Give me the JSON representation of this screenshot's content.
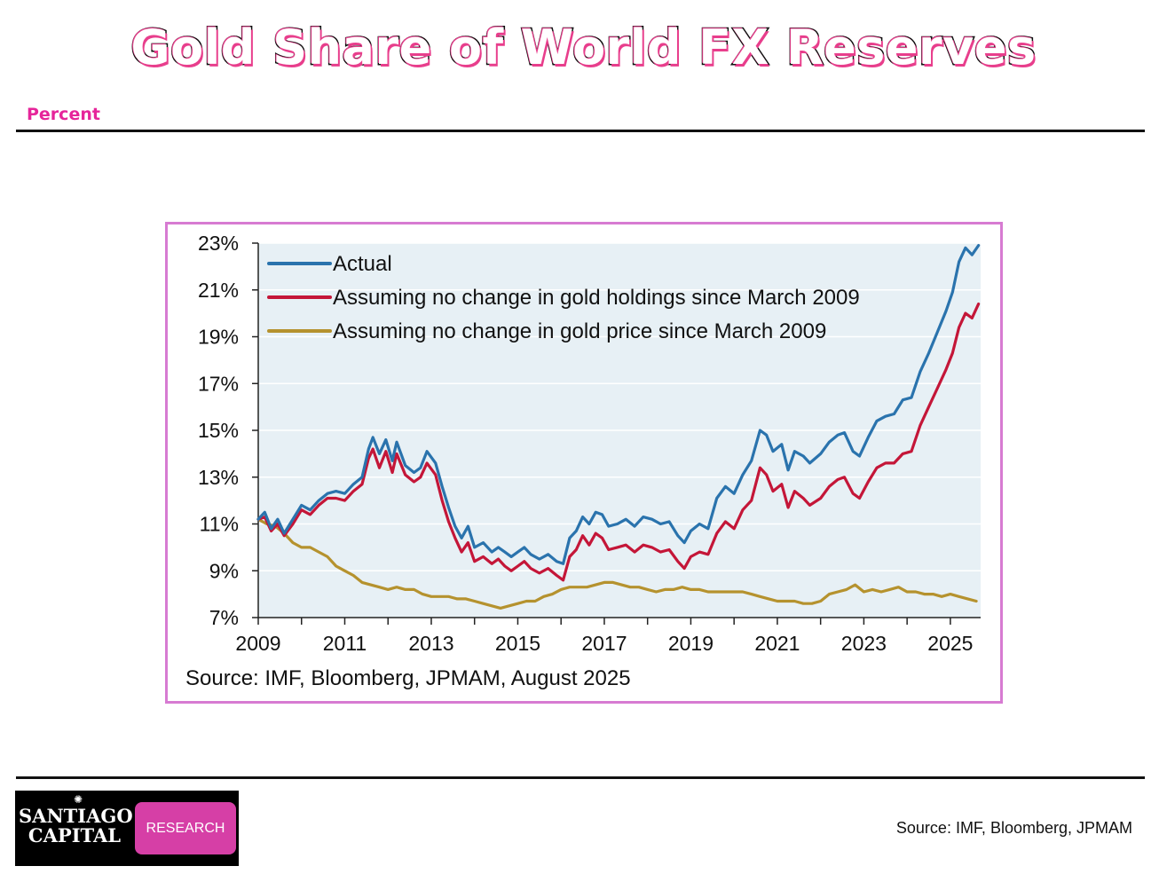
{
  "page": {
    "title": "Gold Share of World FX Reserves",
    "unit_label": "Percent",
    "footer_source": "Source: IMF, Bloomberg, JPMAM"
  },
  "logo": {
    "name_line1": "SANTIAGO",
    "name_line2": "CAPITAL",
    "badge": "RESEARCH"
  },
  "colors": {
    "actual": "#2a73ad",
    "no_change_holdings": "#c41638",
    "no_change_price": "#b5922e",
    "plot_background": "#e7f0f5",
    "frame_border": "#d77bd2",
    "accent_pink": "#e6259a"
  },
  "chart_data": {
    "type": "line",
    "source_note": "Source: IMF, Bloomberg, JPMAM, August 2025",
    "xlim": [
      2009,
      2025.7
    ],
    "ylim": [
      7,
      23
    ],
    "x_ticks": [
      2009,
      2011,
      2013,
      2015,
      2017,
      2019,
      2021,
      2023,
      2025
    ],
    "x_tick_labels": [
      "2009",
      "2011",
      "2013",
      "2015",
      "2017",
      "2019",
      "2021",
      "2023",
      "2025"
    ],
    "y_ticks": [
      7,
      9,
      11,
      13,
      15,
      17,
      19,
      21,
      23
    ],
    "y_tick_labels": [
      "7%",
      "9%",
      "11%",
      "13%",
      "15%",
      "17%",
      "19%",
      "21%",
      "23%"
    ],
    "grid": "horizontal",
    "legend_position": "top-left",
    "series": [
      {
        "name": "Actual",
        "points": [
          [
            2009.0,
            11.2
          ],
          [
            2009.15,
            11.5
          ],
          [
            2009.3,
            10.8
          ],
          [
            2009.45,
            11.2
          ],
          [
            2009.6,
            10.6
          ],
          [
            2009.8,
            11.2
          ],
          [
            2010.0,
            11.8
          ],
          [
            2010.2,
            11.6
          ],
          [
            2010.4,
            12.0
          ],
          [
            2010.6,
            12.3
          ],
          [
            2010.8,
            12.4
          ],
          [
            2011.0,
            12.3
          ],
          [
            2011.2,
            12.7
          ],
          [
            2011.4,
            13.0
          ],
          [
            2011.55,
            14.2
          ],
          [
            2011.65,
            14.7
          ],
          [
            2011.8,
            14.0
          ],
          [
            2011.95,
            14.6
          ],
          [
            2012.1,
            13.7
          ],
          [
            2012.2,
            14.5
          ],
          [
            2012.4,
            13.5
          ],
          [
            2012.6,
            13.2
          ],
          [
            2012.75,
            13.4
          ],
          [
            2012.9,
            14.1
          ],
          [
            2013.1,
            13.6
          ],
          [
            2013.25,
            12.6
          ],
          [
            2013.4,
            11.7
          ],
          [
            2013.55,
            10.9
          ],
          [
            2013.7,
            10.4
          ],
          [
            2013.85,
            10.9
          ],
          [
            2014.0,
            10.0
          ],
          [
            2014.2,
            10.2
          ],
          [
            2014.4,
            9.8
          ],
          [
            2014.55,
            10.0
          ],
          [
            2014.7,
            9.8
          ],
          [
            2014.85,
            9.6
          ],
          [
            2015.0,
            9.8
          ],
          [
            2015.15,
            10.0
          ],
          [
            2015.3,
            9.7
          ],
          [
            2015.5,
            9.5
          ],
          [
            2015.7,
            9.7
          ],
          [
            2015.9,
            9.4
          ],
          [
            2016.05,
            9.3
          ],
          [
            2016.2,
            10.4
          ],
          [
            2016.35,
            10.7
          ],
          [
            2016.5,
            11.3
          ],
          [
            2016.65,
            11.0
          ],
          [
            2016.8,
            11.5
          ],
          [
            2016.95,
            11.4
          ],
          [
            2017.1,
            10.9
          ],
          [
            2017.3,
            11.0
          ],
          [
            2017.5,
            11.2
          ],
          [
            2017.7,
            10.9
          ],
          [
            2017.9,
            11.3
          ],
          [
            2018.1,
            11.2
          ],
          [
            2018.3,
            11.0
          ],
          [
            2018.5,
            11.1
          ],
          [
            2018.7,
            10.5
          ],
          [
            2018.85,
            10.2
          ],
          [
            2019.0,
            10.7
          ],
          [
            2019.2,
            11.0
          ],
          [
            2019.4,
            10.8
          ],
          [
            2019.6,
            12.1
          ],
          [
            2019.8,
            12.6
          ],
          [
            2020.0,
            12.3
          ],
          [
            2020.2,
            13.1
          ],
          [
            2020.4,
            13.7
          ],
          [
            2020.6,
            15.0
          ],
          [
            2020.75,
            14.8
          ],
          [
            2020.9,
            14.1
          ],
          [
            2021.1,
            14.4
          ],
          [
            2021.25,
            13.3
          ],
          [
            2021.4,
            14.1
          ],
          [
            2021.6,
            13.9
          ],
          [
            2021.75,
            13.6
          ],
          [
            2022.0,
            14.0
          ],
          [
            2022.2,
            14.5
          ],
          [
            2022.4,
            14.8
          ],
          [
            2022.55,
            14.9
          ],
          [
            2022.75,
            14.1
          ],
          [
            2022.9,
            13.9
          ],
          [
            2023.1,
            14.7
          ],
          [
            2023.3,
            15.4
          ],
          [
            2023.5,
            15.6
          ],
          [
            2023.7,
            15.7
          ],
          [
            2023.9,
            16.3
          ],
          [
            2024.1,
            16.4
          ],
          [
            2024.3,
            17.5
          ],
          [
            2024.5,
            18.3
          ],
          [
            2024.7,
            19.2
          ],
          [
            2024.9,
            20.1
          ],
          [
            2025.05,
            20.9
          ],
          [
            2025.2,
            22.2
          ],
          [
            2025.35,
            22.8
          ],
          [
            2025.5,
            22.5
          ],
          [
            2025.65,
            22.9
          ]
        ]
      },
      {
        "name": "Assuming no change in gold holdings since March 2009",
        "points": [
          [
            2009.0,
            11.2
          ],
          [
            2009.15,
            11.3
          ],
          [
            2009.3,
            10.7
          ],
          [
            2009.45,
            11.0
          ],
          [
            2009.6,
            10.5
          ],
          [
            2009.8,
            11.0
          ],
          [
            2010.0,
            11.6
          ],
          [
            2010.2,
            11.4
          ],
          [
            2010.4,
            11.8
          ],
          [
            2010.6,
            12.1
          ],
          [
            2010.8,
            12.1
          ],
          [
            2011.0,
            12.0
          ],
          [
            2011.2,
            12.4
          ],
          [
            2011.4,
            12.7
          ],
          [
            2011.55,
            13.8
          ],
          [
            2011.65,
            14.2
          ],
          [
            2011.8,
            13.4
          ],
          [
            2011.95,
            14.1
          ],
          [
            2012.1,
            13.2
          ],
          [
            2012.2,
            14.0
          ],
          [
            2012.4,
            13.1
          ],
          [
            2012.6,
            12.8
          ],
          [
            2012.75,
            13.0
          ],
          [
            2012.9,
            13.6
          ],
          [
            2013.1,
            13.1
          ],
          [
            2013.25,
            12.0
          ],
          [
            2013.4,
            11.1
          ],
          [
            2013.55,
            10.4
          ],
          [
            2013.7,
            9.8
          ],
          [
            2013.85,
            10.2
          ],
          [
            2014.0,
            9.4
          ],
          [
            2014.2,
            9.6
          ],
          [
            2014.4,
            9.3
          ],
          [
            2014.55,
            9.5
          ],
          [
            2014.7,
            9.2
          ],
          [
            2014.85,
            9.0
          ],
          [
            2015.0,
            9.2
          ],
          [
            2015.15,
            9.4
          ],
          [
            2015.3,
            9.1
          ],
          [
            2015.5,
            8.9
          ],
          [
            2015.7,
            9.1
          ],
          [
            2015.9,
            8.8
          ],
          [
            2016.05,
            8.6
          ],
          [
            2016.2,
            9.6
          ],
          [
            2016.35,
            9.9
          ],
          [
            2016.5,
            10.5
          ],
          [
            2016.65,
            10.1
          ],
          [
            2016.8,
            10.6
          ],
          [
            2016.95,
            10.4
          ],
          [
            2017.1,
            9.9
          ],
          [
            2017.3,
            10.0
          ],
          [
            2017.5,
            10.1
          ],
          [
            2017.7,
            9.8
          ],
          [
            2017.9,
            10.1
          ],
          [
            2018.1,
            10.0
          ],
          [
            2018.3,
            9.8
          ],
          [
            2018.5,
            9.9
          ],
          [
            2018.7,
            9.4
          ],
          [
            2018.85,
            9.1
          ],
          [
            2019.0,
            9.6
          ],
          [
            2019.2,
            9.8
          ],
          [
            2019.4,
            9.7
          ],
          [
            2019.6,
            10.6
          ],
          [
            2019.8,
            11.1
          ],
          [
            2020.0,
            10.8
          ],
          [
            2020.2,
            11.6
          ],
          [
            2020.4,
            12.0
          ],
          [
            2020.6,
            13.4
          ],
          [
            2020.75,
            13.1
          ],
          [
            2020.9,
            12.4
          ],
          [
            2021.1,
            12.7
          ],
          [
            2021.25,
            11.7
          ],
          [
            2021.4,
            12.4
          ],
          [
            2021.6,
            12.1
          ],
          [
            2021.75,
            11.8
          ],
          [
            2022.0,
            12.1
          ],
          [
            2022.2,
            12.6
          ],
          [
            2022.4,
            12.9
          ],
          [
            2022.55,
            13.0
          ],
          [
            2022.75,
            12.3
          ],
          [
            2022.9,
            12.1
          ],
          [
            2023.1,
            12.8
          ],
          [
            2023.3,
            13.4
          ],
          [
            2023.5,
            13.6
          ],
          [
            2023.7,
            13.6
          ],
          [
            2023.9,
            14.0
          ],
          [
            2024.1,
            14.1
          ],
          [
            2024.3,
            15.2
          ],
          [
            2024.5,
            16.0
          ],
          [
            2024.7,
            16.8
          ],
          [
            2024.9,
            17.6
          ],
          [
            2025.05,
            18.3
          ],
          [
            2025.2,
            19.4
          ],
          [
            2025.35,
            20.0
          ],
          [
            2025.5,
            19.8
          ],
          [
            2025.65,
            20.4
          ]
        ]
      },
      {
        "name": "Assuming no change in gold price since March 2009",
        "points": [
          [
            2009.0,
            11.2
          ],
          [
            2009.2,
            11.0
          ],
          [
            2009.4,
            10.9
          ],
          [
            2009.6,
            10.6
          ],
          [
            2009.8,
            10.2
          ],
          [
            2010.0,
            10.0
          ],
          [
            2010.2,
            10.0
          ],
          [
            2010.4,
            9.8
          ],
          [
            2010.6,
            9.6
          ],
          [
            2010.8,
            9.2
          ],
          [
            2011.0,
            9.0
          ],
          [
            2011.2,
            8.8
          ],
          [
            2011.4,
            8.5
          ],
          [
            2011.6,
            8.4
          ],
          [
            2011.8,
            8.3
          ],
          [
            2012.0,
            8.2
          ],
          [
            2012.2,
            8.3
          ],
          [
            2012.4,
            8.2
          ],
          [
            2012.6,
            8.2
          ],
          [
            2012.8,
            8.0
          ],
          [
            2013.0,
            7.9
          ],
          [
            2013.2,
            7.9
          ],
          [
            2013.4,
            7.9
          ],
          [
            2013.6,
            7.8
          ],
          [
            2013.8,
            7.8
          ],
          [
            2014.0,
            7.7
          ],
          [
            2014.2,
            7.6
          ],
          [
            2014.4,
            7.5
          ],
          [
            2014.6,
            7.4
          ],
          [
            2014.8,
            7.5
          ],
          [
            2015.0,
            7.6
          ],
          [
            2015.2,
            7.7
          ],
          [
            2015.4,
            7.7
          ],
          [
            2015.6,
            7.9
          ],
          [
            2015.8,
            8.0
          ],
          [
            2016.0,
            8.2
          ],
          [
            2016.2,
            8.3
          ],
          [
            2016.4,
            8.3
          ],
          [
            2016.6,
            8.3
          ],
          [
            2016.8,
            8.4
          ],
          [
            2017.0,
            8.5
          ],
          [
            2017.2,
            8.5
          ],
          [
            2017.4,
            8.4
          ],
          [
            2017.6,
            8.3
          ],
          [
            2017.8,
            8.3
          ],
          [
            2018.0,
            8.2
          ],
          [
            2018.2,
            8.1
          ],
          [
            2018.4,
            8.2
          ],
          [
            2018.6,
            8.2
          ],
          [
            2018.8,
            8.3
          ],
          [
            2019.0,
            8.2
          ],
          [
            2019.2,
            8.2
          ],
          [
            2019.4,
            8.1
          ],
          [
            2019.6,
            8.1
          ],
          [
            2019.8,
            8.1
          ],
          [
            2020.0,
            8.1
          ],
          [
            2020.2,
            8.1
          ],
          [
            2020.4,
            8.0
          ],
          [
            2020.6,
            7.9
          ],
          [
            2020.8,
            7.8
          ],
          [
            2021.0,
            7.7
          ],
          [
            2021.2,
            7.7
          ],
          [
            2021.4,
            7.7
          ],
          [
            2021.6,
            7.6
          ],
          [
            2021.8,
            7.6
          ],
          [
            2022.0,
            7.7
          ],
          [
            2022.2,
            8.0
          ],
          [
            2022.4,
            8.1
          ],
          [
            2022.6,
            8.2
          ],
          [
            2022.8,
            8.4
          ],
          [
            2023.0,
            8.1
          ],
          [
            2023.2,
            8.2
          ],
          [
            2023.4,
            8.1
          ],
          [
            2023.6,
            8.2
          ],
          [
            2023.8,
            8.3
          ],
          [
            2024.0,
            8.1
          ],
          [
            2024.2,
            8.1
          ],
          [
            2024.4,
            8.0
          ],
          [
            2024.6,
            8.0
          ],
          [
            2024.8,
            7.9
          ],
          [
            2025.0,
            8.0
          ],
          [
            2025.2,
            7.9
          ],
          [
            2025.4,
            7.8
          ],
          [
            2025.6,
            7.7
          ]
        ]
      }
    ]
  }
}
